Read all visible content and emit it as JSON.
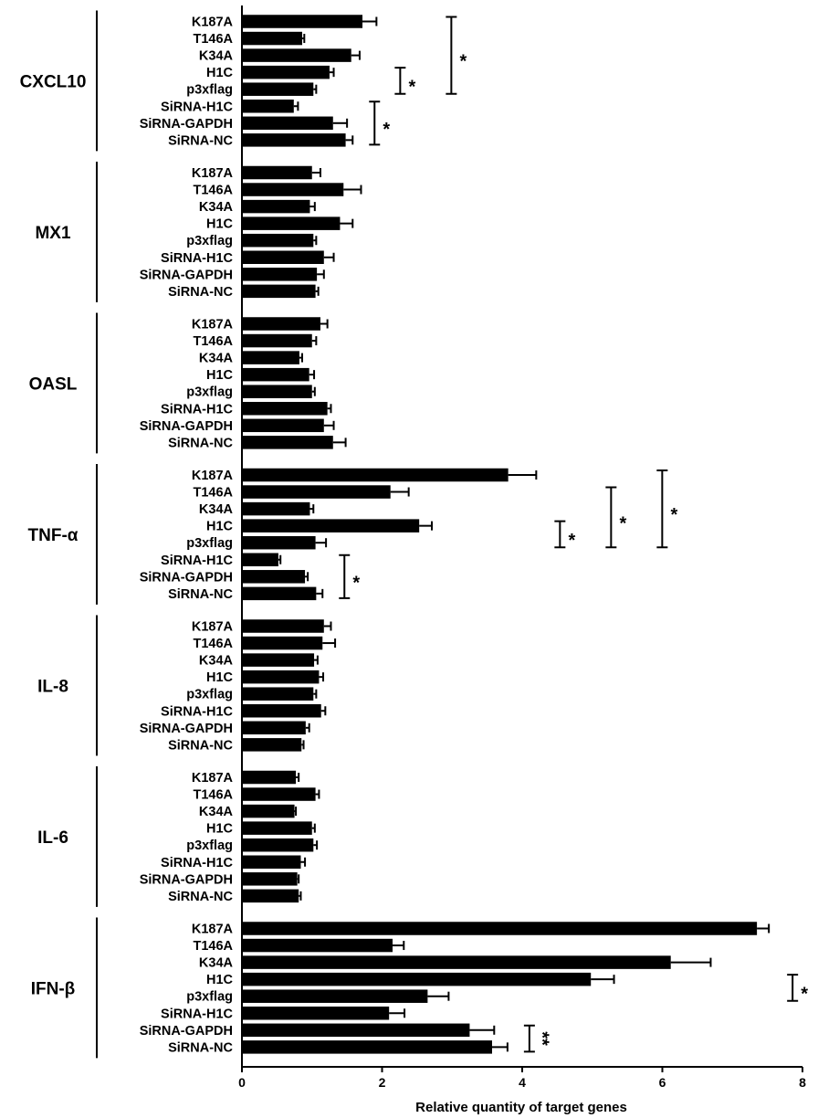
{
  "chart_data": {
    "type": "bar",
    "orientation": "horizontal",
    "xlabel": "Relative quantity of target genes",
    "xlim": [
      0,
      8
    ],
    "xticks": [
      "0",
      "2",
      "4",
      "6",
      "8"
    ],
    "categories": [
      "K187A",
      "T146A",
      "K34A",
      "H1C",
      "p3xflag",
      "SiRNA-H1C",
      "SiRNA-GAPDH",
      "SiRNA-NC"
    ],
    "groups": [
      {
        "name": "CXCL10",
        "values": [
          1.72,
          0.86,
          1.56,
          1.25,
          1.02,
          0.74,
          1.3,
          1.48
        ],
        "errors": [
          0.2,
          0.03,
          0.12,
          0.06,
          0.04,
          0.06,
          0.2,
          0.1
        ],
        "sig": [
          {
            "from": "H1C",
            "to": "p3xflag",
            "label": "*"
          },
          {
            "from": "K187A",
            "to": "p3xflag",
            "label": "*"
          },
          {
            "from": "SiRNA-H1C",
            "to": "SiRNA-NC",
            "label": "*"
          }
        ]
      },
      {
        "name": "MX1",
        "values": [
          1.0,
          1.45,
          0.97,
          1.4,
          1.02,
          1.17,
          1.07,
          1.05
        ],
        "errors": [
          0.12,
          0.25,
          0.07,
          0.18,
          0.04,
          0.14,
          0.1,
          0.04
        ],
        "sig": []
      },
      {
        "name": "OASL",
        "values": [
          1.12,
          1.0,
          0.82,
          0.96,
          1.0,
          1.22,
          1.17,
          1.3
        ],
        "errors": [
          0.1,
          0.06,
          0.04,
          0.07,
          0.04,
          0.05,
          0.14,
          0.18
        ],
        "sig": []
      },
      {
        "name": "TNF-α",
        "values": [
          3.8,
          2.12,
          0.97,
          2.53,
          1.05,
          0.52,
          0.9,
          1.06
        ],
        "errors": [
          0.4,
          0.26,
          0.05,
          0.18,
          0.15,
          0.03,
          0.04,
          0.09
        ],
        "sig": [
          {
            "from": "H1C",
            "to": "p3xflag",
            "label": "*"
          },
          {
            "from": "T146A",
            "to": "p3xflag",
            "label": "*"
          },
          {
            "from": "K187A",
            "to": "p3xflag",
            "label": "*"
          },
          {
            "from": "SiRNA-H1C",
            "to": "SiRNA-NC",
            "label": "*"
          }
        ]
      },
      {
        "name": "IL-8",
        "values": [
          1.17,
          1.15,
          1.03,
          1.1,
          1.02,
          1.13,
          0.91,
          0.85
        ],
        "errors": [
          0.1,
          0.18,
          0.05,
          0.06,
          0.04,
          0.06,
          0.05,
          0.03
        ],
        "sig": []
      },
      {
        "name": "IL-6",
        "values": [
          0.77,
          1.05,
          0.75,
          1.0,
          1.02,
          0.84,
          0.79,
          0.81
        ],
        "errors": [
          0.04,
          0.05,
          0.02,
          0.04,
          0.05,
          0.06,
          0.02,
          0.03
        ],
        "sig": []
      },
      {
        "name": "IFN-β",
        "values": [
          7.35,
          2.15,
          6.12,
          4.98,
          2.65,
          2.1,
          3.25,
          3.57
        ],
        "errors": [
          0.17,
          0.16,
          0.57,
          0.33,
          0.3,
          0.22,
          0.35,
          0.22
        ],
        "sig": [
          {
            "from": "H1C",
            "to": "p3xflag",
            "label": "*"
          },
          {
            "from": "K34A",
            "to": "p3xflag",
            "label": "**"
          },
          {
            "from": "K187A",
            "to": "p3xflag",
            "label": "**"
          },
          {
            "from": "SiRNA-GAPDH",
            "to": "SiRNA-NC",
            "label": "**"
          }
        ]
      }
    ]
  }
}
